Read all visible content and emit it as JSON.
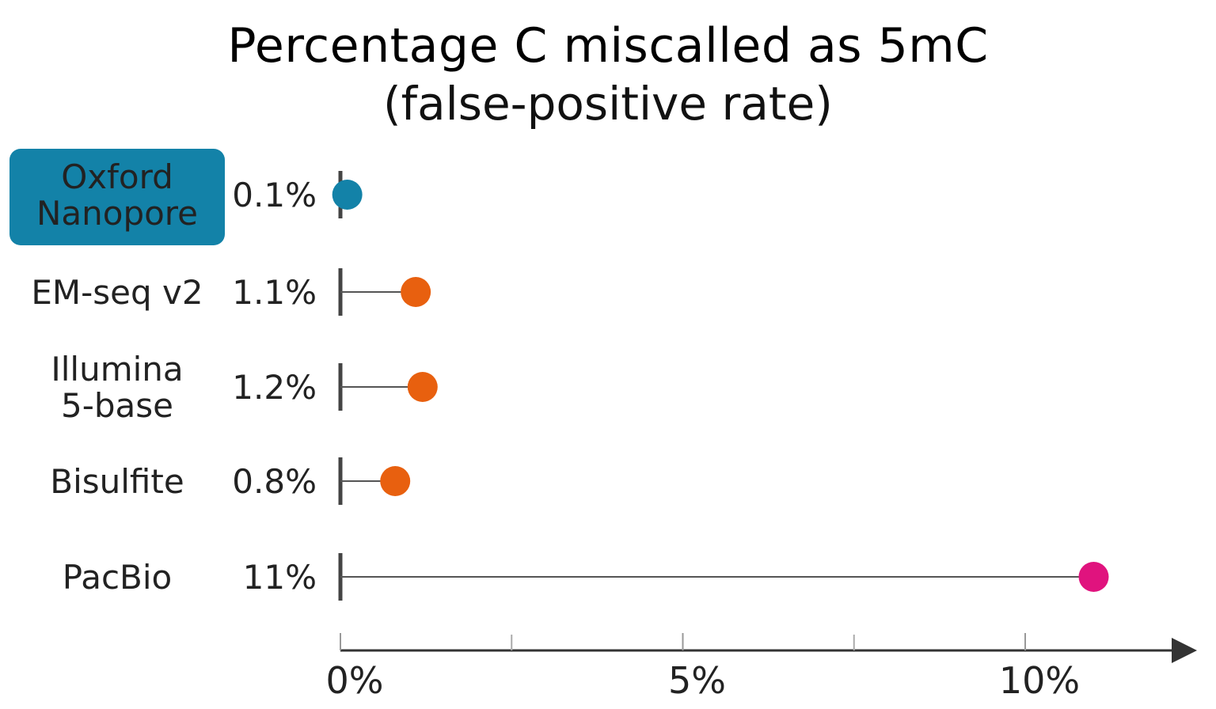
{
  "chart_data": {
    "type": "dot",
    "title": "Percentage C miscalled as 5mC",
    "subtitle": "(false-positive rate)",
    "categories": [
      "Oxford Nanopore",
      "EM-seq v2",
      "Illumina 5-base",
      "Bisulfite",
      "PacBio"
    ],
    "category_lines": [
      [
        "Oxford",
        "Nanopore"
      ],
      [
        "EM-seq v2"
      ],
      [
        "Illumina",
        "5-base"
      ],
      [
        "Bisulfite"
      ],
      [
        "PacBio"
      ]
    ],
    "values": [
      0.1,
      1.1,
      1.2,
      0.8,
      11
    ],
    "value_labels": [
      "0.1%",
      "1.1%",
      "1.2%",
      "0.8%",
      "11%"
    ],
    "colors": [
      "#1382a8",
      "#e8600f",
      "#e8600f",
      "#e8600f",
      "#e0137e"
    ],
    "highlighted_category": "Oxford Nanopore",
    "highlight_color": "#1382a8",
    "xlim": [
      0,
      12
    ],
    "xticks_major": [
      0,
      5,
      10
    ],
    "xticks_minor": [
      2.5,
      7.5
    ],
    "xtick_labels": [
      "0%",
      "5%",
      "10%"
    ],
    "xlabel": "",
    "ylabel": "",
    "grid": false,
    "legend": "none"
  }
}
